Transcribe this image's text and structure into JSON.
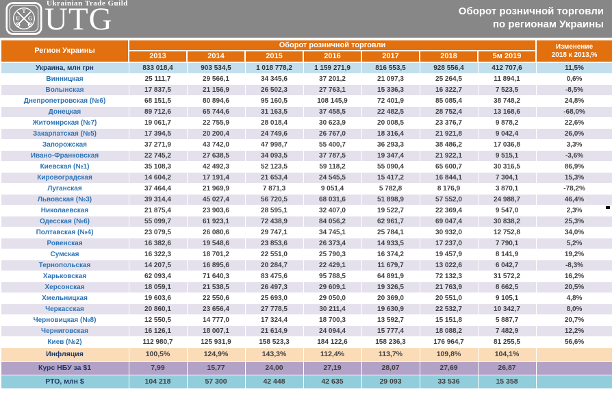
{
  "header": {
    "logo_text": "UTG",
    "logo_subtext": "Ukrainian Trade Guild",
    "title_line1": "Оборот розничной торговли",
    "title_line2": "по регионам Украины"
  },
  "colors": {
    "accent_orange": "#E2700E",
    "header_gray": "#878787",
    "total_row_bg": "#C3DFEE",
    "alt_row_bg": "#E4E1ED",
    "inflation_row_bg": "#FBDCB9",
    "fx_row_bg": "#B2A2C7",
    "rto_row_bg": "#92CDDC",
    "region_text_blue": "#2E74B5",
    "value_text": "#404040"
  },
  "chart_data": {
    "type": "table",
    "title": "Оборот розничной торговли по регионам Украины",
    "region_col_header": "Регион Украины",
    "group_header": "Оборот розничной торговли",
    "change_header_line1": "Изменение",
    "change_header_line2": "2018 к 2013,%",
    "year_columns": [
      "2013",
      "2014",
      "2015",
      "2016",
      "2017",
      "2018",
      "5м 2019"
    ],
    "rows": [
      {
        "region": "Украина, млн грн",
        "values": [
          "833 018,4",
          "903 534,5",
          "1 018 778,2",
          "1 159 271,9",
          "816 553,5",
          "928 556,4",
          "412 707,6"
        ],
        "change": "11,5%"
      },
      {
        "region": "Винницкая",
        "values": [
          "25 111,7",
          "29 566,1",
          "34 345,6",
          "37 201,2",
          "21 097,3",
          "25 264,5",
          "11 894,1"
        ],
        "change": "0,6%"
      },
      {
        "region": "Волынская",
        "values": [
          "17 837,5",
          "21 156,9",
          "26 502,3",
          "27 763,1",
          "15 336,3",
          "16 322,7",
          "7 523,5"
        ],
        "change": "-8,5%"
      },
      {
        "region": "Днепропетровская (№6)",
        "values": [
          "68 151,5",
          "80 894,6",
          "95 160,5",
          "108 145,9",
          "72 401,9",
          "85 085,4",
          "38 748,2"
        ],
        "change": "24,8%"
      },
      {
        "region": "Донецкая",
        "values": [
          "89 712,6",
          "65 744,6",
          "31 163,5",
          "37 458,5",
          "22 482,5",
          "28 752,4",
          "13 168,6"
        ],
        "change": "-68,0%"
      },
      {
        "region": "Житомирская (№7)",
        "values": [
          "19 061,7",
          "22 755,9",
          "28 018,4",
          "30 623,9",
          "20 008,5",
          "23 376,7",
          "9 878,2"
        ],
        "change": "22,6%"
      },
      {
        "region": "Закарпатская (№5)",
        "values": [
          "17 394,5",
          "20 200,4",
          "24 749,6",
          "26 767,0",
          "18 316,4",
          "21 921,8",
          "9 042,4"
        ],
        "change": "26,0%"
      },
      {
        "region": "Запорожская",
        "values": [
          "37 271,9",
          "43 742,0",
          "47 998,7",
          "55 400,7",
          "36 293,3",
          "38 486,2",
          "17 036,8"
        ],
        "change": "3,3%"
      },
      {
        "region": "Ивано-Франковская",
        "values": [
          "22 745,2",
          "27 638,5",
          "34 093,5",
          "37 787,5",
          "19 347,4",
          "21 922,1",
          "9 515,1"
        ],
        "change": "-3,6%"
      },
      {
        "region": "Киевская (№1)",
        "values": [
          "35 108,3",
          "42 492,3",
          "52 123,5",
          "59 118,2",
          "55 090,4",
          "65 600,7",
          "30 316,5"
        ],
        "change": "86,9%"
      },
      {
        "region": "Кировоградская",
        "values": [
          "14 604,2",
          "17 191,4",
          "21 653,4",
          "24 545,5",
          "15 417,2",
          "16 844,1",
          "7 304,1"
        ],
        "change": "15,3%"
      },
      {
        "region": "Луганская",
        "values": [
          "37 464,4",
          "21 969,9",
          "7 871,3",
          "9 051,4",
          "5 782,8",
          "8 176,9",
          "3 870,1"
        ],
        "change": "-78,2%"
      },
      {
        "region": "Львовская (№3)",
        "values": [
          "39 314,4",
          "45 027,4",
          "56 720,5",
          "68 031,6",
          "51 898,9",
          "57 552,0",
          "24 988,7"
        ],
        "change": "46,4%"
      },
      {
        "region": "Николаевская",
        "values": [
          "21 875,4",
          "23 903,6",
          "28 595,1",
          "32 407,0",
          "19 522,7",
          "22 369,4",
          "9 547,0"
        ],
        "change": "2,3%"
      },
      {
        "region": "Одесская (№6)",
        "values": [
          "55 099,7",
          "61 923,1",
          "72 438,9",
          "84 056,2",
          "62 961,7",
          "69 047,4",
          "30 838,2"
        ],
        "change": "25,3%"
      },
      {
        "region": "Полтавская (№4)",
        "values": [
          "23 079,5",
          "26 080,6",
          "29 747,1",
          "34 745,1",
          "25 784,1",
          "30 932,0",
          "12 752,8"
        ],
        "change": "34,0%"
      },
      {
        "region": "Ровенская",
        "values": [
          "16 382,6",
          "19 548,6",
          "23 853,6",
          "26 373,4",
          "14 933,5",
          "17 237,0",
          "7 790,1"
        ],
        "change": "5,2%"
      },
      {
        "region": "Сумская",
        "values": [
          "16 322,3",
          "18 701,2",
          "22 551,0",
          "25 790,3",
          "16 374,2",
          "19 457,9",
          "8 141,9"
        ],
        "change": "19,2%"
      },
      {
        "region": "Тернопольская",
        "values": [
          "14 207,5",
          "16 895,6",
          "20 284,7",
          "22 429,1",
          "11 679,7",
          "13 022,6",
          "6 042,7"
        ],
        "change": "-8,3%"
      },
      {
        "region": "Харьковская",
        "values": [
          "62 093,4",
          "71 640,3",
          "83 475,6",
          "95 788,5",
          "64 891,9",
          "72 132,3",
          "31 572,2"
        ],
        "change": "16,2%"
      },
      {
        "region": "Херсонская",
        "values": [
          "18 059,1",
          "21 538,5",
          "26 497,3",
          "29 609,1",
          "19 326,5",
          "21 763,9",
          "8 662,5"
        ],
        "change": "20,5%"
      },
      {
        "region": "Хмельницкая",
        "values": [
          "19 603,6",
          "22 550,6",
          "25 693,0",
          "29 050,0",
          "20 369,0",
          "20 551,0",
          "9 105,1"
        ],
        "change": "4,8%"
      },
      {
        "region": "Черкасская",
        "values": [
          "20 860,1",
          "23 656,4",
          "27 778,5",
          "30 211,4",
          "19 630,9",
          "22 532,7",
          "10 342,7"
        ],
        "change": "8,0%"
      },
      {
        "region": "Черновицкая (№8)",
        "values": [
          "12 550,5",
          "14 777,0",
          "17 324,4",
          "18 700,3",
          "13 592,7",
          "15 151,8",
          "5 887,7"
        ],
        "change": "20,7%"
      },
      {
        "region": "Черниговская",
        "values": [
          "16 126,1",
          "18 007,1",
          "21 614,9",
          "24 094,4",
          "15 777,4",
          "18 088,2",
          "7 482,9"
        ],
        "change": "12,2%"
      },
      {
        "region": "Киев (№2)",
        "values": [
          "112 980,7",
          "125 931,9",
          "158 523,3",
          "184 122,6",
          "158 236,3",
          "176 964,7",
          "81 255,5"
        ],
        "change": "56,6%"
      }
    ],
    "footer_rows": [
      {
        "label": "Инфляция",
        "kind": "inflation",
        "values": [
          "100,5%",
          "124,9%",
          "143,3%",
          "112,4%",
          "113,7%",
          "109,8%",
          "104,1%"
        ],
        "change": ""
      },
      {
        "label": "Курс НБУ за $1",
        "kind": "fx",
        "values": [
          "7,99",
          "15,77",
          "24,00",
          "27,19",
          "28,07",
          "27,69",
          "26,87"
        ],
        "change": ""
      },
      {
        "label": "РТО, млн $",
        "kind": "rto",
        "values": [
          "104 218",
          "57 300",
          "42 448",
          "42 635",
          "29 093",
          "33 536",
          "15 358"
        ],
        "change": ""
      }
    ]
  }
}
